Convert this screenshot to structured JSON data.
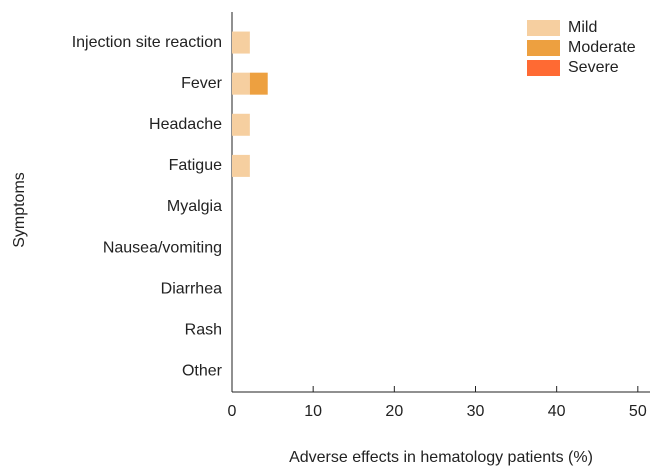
{
  "chart_data": {
    "type": "stacked_barh",
    "xlabel": "Adverse effects in hematology patients (%)",
    "ylabel": "Symptoms",
    "categories": [
      "Injection site reaction",
      "Fever",
      "Headache",
      "Fatigue",
      "Myalgia",
      "Nausea/vomiting",
      "Diarrhea",
      "Rash",
      "Other"
    ],
    "series": [
      {
        "name": "Mild",
        "color": "#f6cfa0",
        "values": [
          2.2,
          2.2,
          2.2,
          2.2,
          0,
          0,
          0,
          0,
          0
        ]
      },
      {
        "name": "Moderate",
        "color": "#eda040",
        "values": [
          0,
          2.2,
          0,
          0,
          0,
          0,
          0,
          0,
          0
        ]
      },
      {
        "name": "Severe",
        "color": "#ff6a33",
        "values": [
          0,
          0,
          0,
          0,
          0,
          0,
          0,
          0,
          0
        ]
      }
    ],
    "xlim": [
      0,
      51.5
    ],
    "xticks": [
      0,
      10,
      20,
      30,
      40,
      50
    ],
    "legend": "upper right"
  }
}
